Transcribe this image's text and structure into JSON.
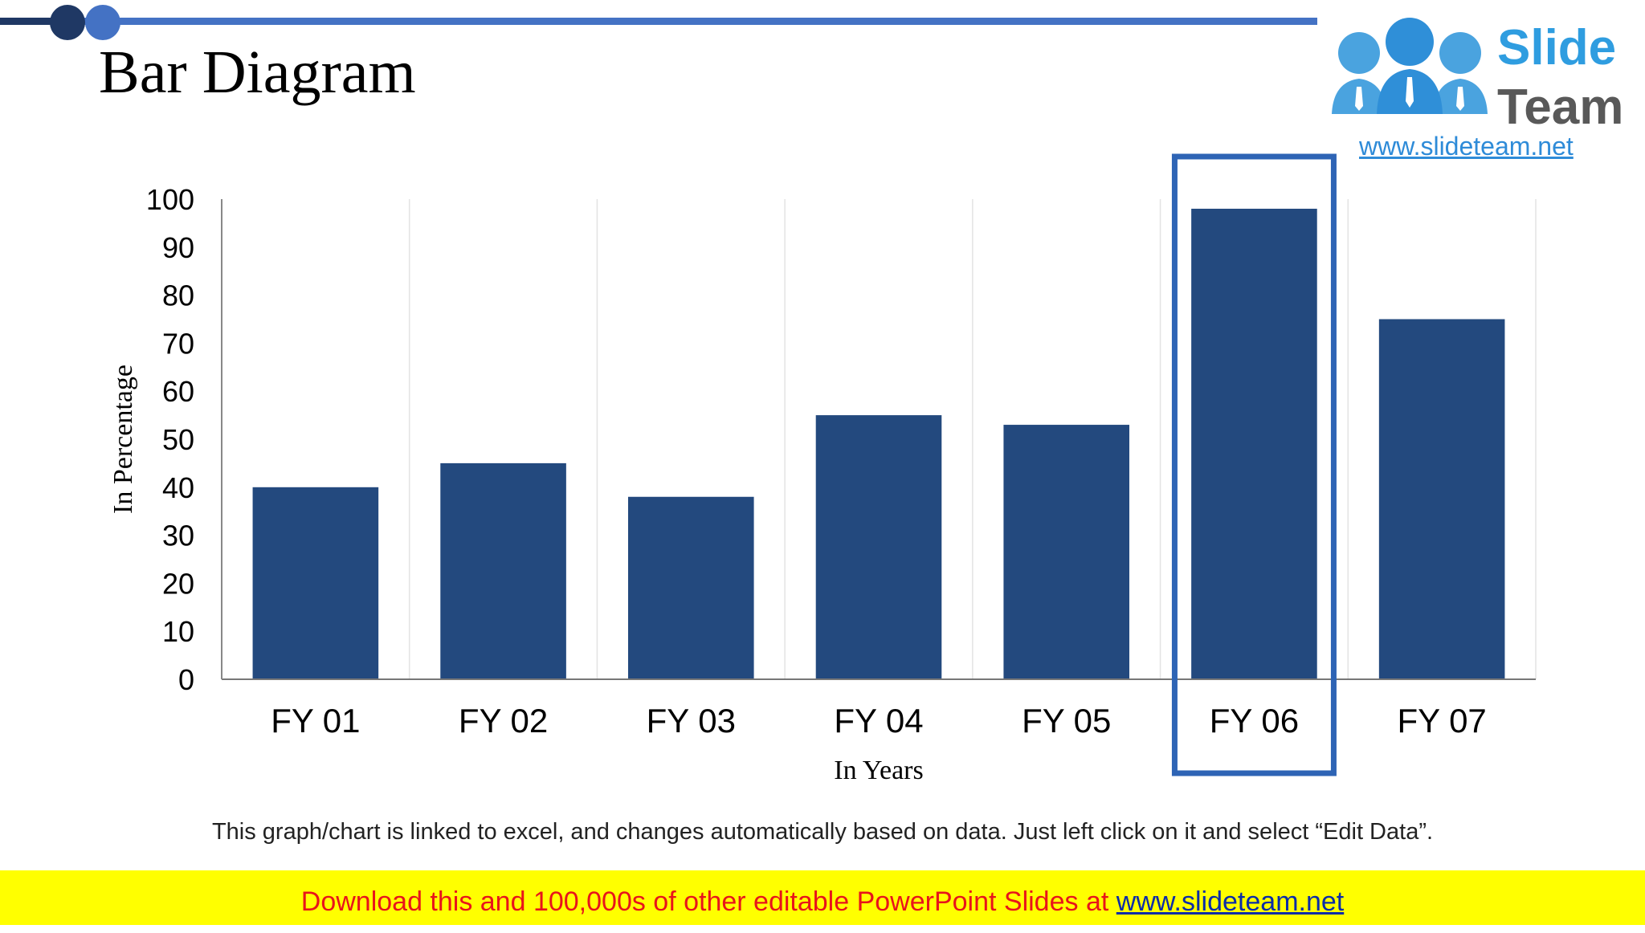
{
  "slide": {
    "title": "Bar Diagram",
    "note": "This graph/chart is linked to excel, and changes automatically based on data. Just left click on it and select “Edit Data”.",
    "banner": {
      "text": "Download this and 100,000s of other editable PowerPoint Slides at ",
      "link": "www.slideteam.net"
    },
    "logo": {
      "word1": "Slide",
      "word2": "Team",
      "url": "www.slideteam.net",
      "people_icon": "people-group-icon"
    },
    "colors": {
      "bar": "#23497e",
      "highlight_border": "#2e64b5",
      "accent_dark": "#1f3864",
      "accent_light": "#4472c4",
      "banner_bg": "#ffff00",
      "banner_text": "#e8141b",
      "banner_link": "#0b2ca8",
      "logo_blue": "#2f9de0",
      "logo_gray": "#595959"
    }
  },
  "chart_data": {
    "type": "bar",
    "categories": [
      "FY 01",
      "FY 02",
      "FY 03",
      "FY 04",
      "FY 05",
      "FY 06",
      "FY 07"
    ],
    "values": [
      40,
      45,
      38,
      55,
      53,
      98,
      75
    ],
    "title": "",
    "xlabel": "In Years",
    "ylabel": "In Percentage",
    "ylim": [
      0,
      100
    ],
    "yticks": [
      0,
      10,
      20,
      30,
      40,
      50,
      60,
      70,
      80,
      90,
      100
    ],
    "grid": "vertical category separators",
    "highlighted_category": "FY 06",
    "legend": "none"
  }
}
